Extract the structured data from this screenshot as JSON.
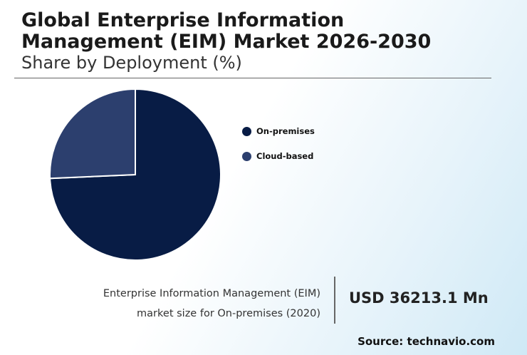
{
  "title_line1": "Global Enterprise Information",
  "title_line2": "Management (EIM) Market 2026-2030",
  "subtitle": "Share by Deployment (%)",
  "chart_data": {
    "type": "pie",
    "categories": [
      "On-premises",
      "Cloud-based"
    ],
    "values": [
      74.3,
      25.7
    ],
    "colors": [
      "#081c45",
      "#2c3f6e"
    ],
    "legend_position": "right"
  },
  "caption_line1": "Enterprise Information Management (EIM)",
  "caption_line2": "market size for On-premises (2020)",
  "market_value": "USD 36213.1 Mn",
  "source": "Source: technavio.com"
}
